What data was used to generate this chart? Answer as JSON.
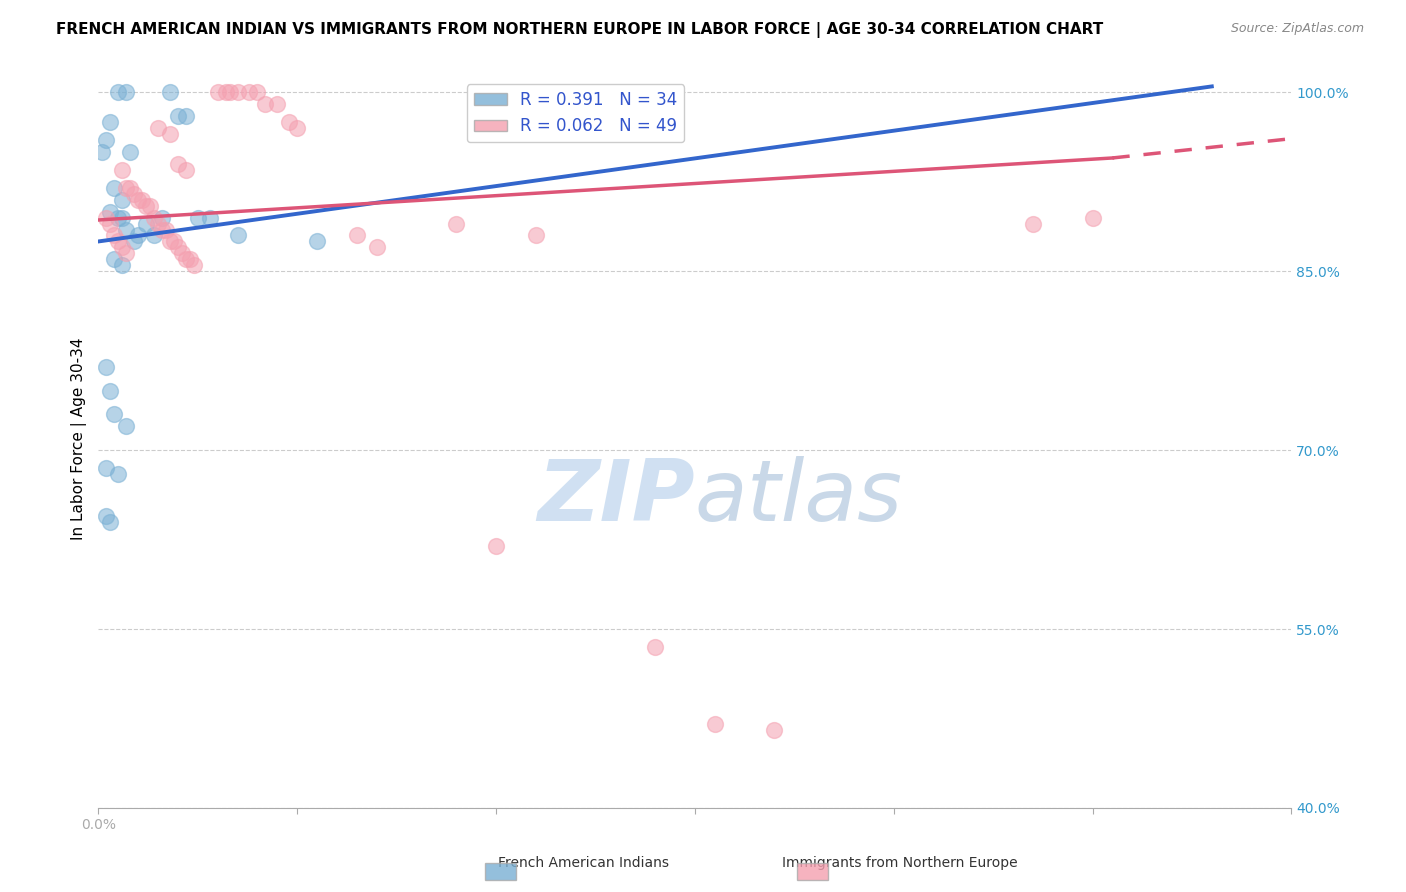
{
  "title": "FRENCH AMERICAN INDIAN VS IMMIGRANTS FROM NORTHERN EUROPE IN LABOR FORCE | AGE 30-34 CORRELATION CHART",
  "source": "Source: ZipAtlas.com",
  "xlabel": "",
  "ylabel": "In Labor Force | Age 30-34",
  "xlim": [
    0.0,
    0.3
  ],
  "ylim": [
    0.4,
    1.02
  ],
  "yticks": [
    0.4,
    0.55,
    0.7,
    0.85,
    1.0
  ],
  "ytick_labels": [
    "40.0%",
    "55.0%",
    "70.0%",
    "85.0%",
    "100.0%"
  ],
  "xticks": [
    0.0,
    0.05,
    0.1,
    0.15,
    0.2,
    0.25,
    0.3
  ],
  "xtick_labels": [
    "0.0%",
    "",
    "",
    "",
    "",
    "",
    ""
  ],
  "blue_R": 0.391,
  "blue_N": 34,
  "pink_R": 0.062,
  "pink_N": 49,
  "legend_label_blue": "French American Indians",
  "legend_label_pink": "Immigrants from Northern Europe",
  "blue_scatter_x": [
    0.005,
    0.007,
    0.018,
    0.02,
    0.022,
    0.001,
    0.002,
    0.003,
    0.004,
    0.006,
    0.008,
    0.003,
    0.005,
    0.006,
    0.007,
    0.009,
    0.01,
    0.012,
    0.014,
    0.016,
    0.004,
    0.006,
    0.025,
    0.028,
    0.035,
    0.055,
    0.002,
    0.003,
    0.004,
    0.002,
    0.005,
    0.007,
    0.002,
    0.003
  ],
  "blue_scatter_y": [
    1.0,
    1.0,
    1.0,
    0.98,
    0.98,
    0.95,
    0.96,
    0.975,
    0.92,
    0.91,
    0.95,
    0.9,
    0.895,
    0.895,
    0.885,
    0.875,
    0.88,
    0.89,
    0.88,
    0.895,
    0.86,
    0.855,
    0.895,
    0.895,
    0.88,
    0.875,
    0.77,
    0.75,
    0.73,
    0.685,
    0.68,
    0.72,
    0.645,
    0.64
  ],
  "pink_scatter_x": [
    0.03,
    0.032,
    0.033,
    0.035,
    0.038,
    0.04,
    0.042,
    0.045,
    0.048,
    0.05,
    0.015,
    0.018,
    0.02,
    0.022,
    0.006,
    0.007,
    0.008,
    0.009,
    0.01,
    0.011,
    0.012,
    0.013,
    0.014,
    0.015,
    0.016,
    0.017,
    0.018,
    0.019,
    0.02,
    0.021,
    0.022,
    0.023,
    0.024,
    0.065,
    0.07,
    0.002,
    0.003,
    0.004,
    0.005,
    0.006,
    0.007,
    0.1,
    0.14,
    0.155,
    0.17,
    0.09,
    0.11,
    0.235,
    0.25
  ],
  "pink_scatter_y": [
    1.0,
    1.0,
    1.0,
    1.0,
    1.0,
    1.0,
    0.99,
    0.99,
    0.975,
    0.97,
    0.97,
    0.965,
    0.94,
    0.935,
    0.935,
    0.92,
    0.92,
    0.915,
    0.91,
    0.91,
    0.905,
    0.905,
    0.895,
    0.89,
    0.885,
    0.885,
    0.875,
    0.875,
    0.87,
    0.865,
    0.86,
    0.86,
    0.855,
    0.88,
    0.87,
    0.895,
    0.89,
    0.88,
    0.875,
    0.87,
    0.865,
    0.62,
    0.535,
    0.47,
    0.465,
    0.89,
    0.88,
    0.89,
    0.895
  ],
  "blue_line_x": [
    0.0,
    0.28
  ],
  "blue_line_y": [
    0.875,
    1.005
  ],
  "pink_solid_line_x": [
    0.0,
    0.255
  ],
  "pink_solid_line_y": [
    0.893,
    0.945
  ],
  "pink_dashed_line_x": [
    0.255,
    0.305
  ],
  "pink_dashed_line_y": [
    0.945,
    0.963
  ],
  "watermark_zip": "ZIP",
  "watermark_atlas": "atlas",
  "background_color": "#ffffff",
  "plot_bg_color": "#ffffff",
  "grid_color": "#cccccc",
  "blue_color": "#7ab0d4",
  "pink_color": "#f4a0b0",
  "blue_line_color": "#3366cc",
  "pink_line_color": "#dd5577",
  "title_fontsize": 11,
  "axis_label_fontsize": 11,
  "tick_fontsize": 10,
  "legend_fontsize": 12
}
